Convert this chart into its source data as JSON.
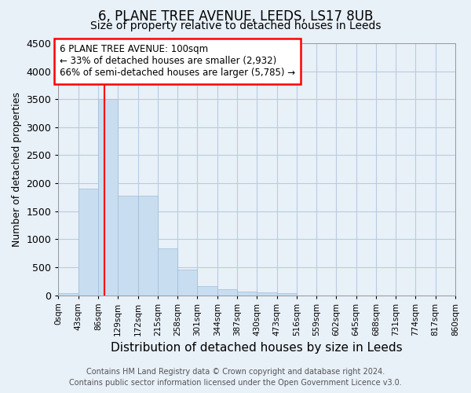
{
  "title": "6, PLANE TREE AVENUE, LEEDS, LS17 8UB",
  "subtitle": "Size of property relative to detached houses in Leeds",
  "xlabel": "Distribution of detached houses by size in Leeds",
  "ylabel": "Number of detached properties",
  "footer_line1": "Contains HM Land Registry data © Crown copyright and database right 2024.",
  "footer_line2": "Contains public sector information licensed under the Open Government Licence v3.0.",
  "bar_color": "#c8ddf0",
  "bar_edge_color": "#a0bcd8",
  "grid_color": "#b8cce0",
  "bg_color": "#e8f0f8",
  "annotation_line1": "6 PLANE TREE AVENUE: 100sqm",
  "annotation_line2": "← 33% of detached houses are smaller (2,932)",
  "annotation_line3": "66% of semi-detached houses are larger (5,785) →",
  "red_line_x": 100,
  "bin_edges": [
    0,
    43,
    86,
    129,
    172,
    215,
    258,
    301,
    344,
    387,
    430,
    473,
    516,
    559,
    602,
    645,
    688,
    731,
    774,
    817,
    860
  ],
  "bin_heights": [
    30,
    1900,
    3500,
    1780,
    1780,
    840,
    450,
    160,
    100,
    60,
    50,
    40,
    0,
    0,
    0,
    0,
    0,
    0,
    0,
    0
  ],
  "ylim": [
    0,
    4500
  ],
  "yticks": [
    0,
    500,
    1000,
    1500,
    2000,
    2500,
    3000,
    3500,
    4000,
    4500
  ],
  "tick_labels": [
    "0sqm",
    "43sqm",
    "86sqm",
    "129sqm",
    "172sqm",
    "215sqm",
    "258sqm",
    "301sqm",
    "344sqm",
    "387sqm",
    "430sqm",
    "473sqm",
    "516sqm",
    "559sqm",
    "602sqm",
    "645sqm",
    "688sqm",
    "731sqm",
    "774sqm",
    "817sqm",
    "860sqm"
  ],
  "title_fontsize": 12,
  "subtitle_fontsize": 10,
  "xlabel_fontsize": 11,
  "ylabel_fontsize": 9,
  "footer_fontsize": 7,
  "annot_fontsize": 8.5
}
